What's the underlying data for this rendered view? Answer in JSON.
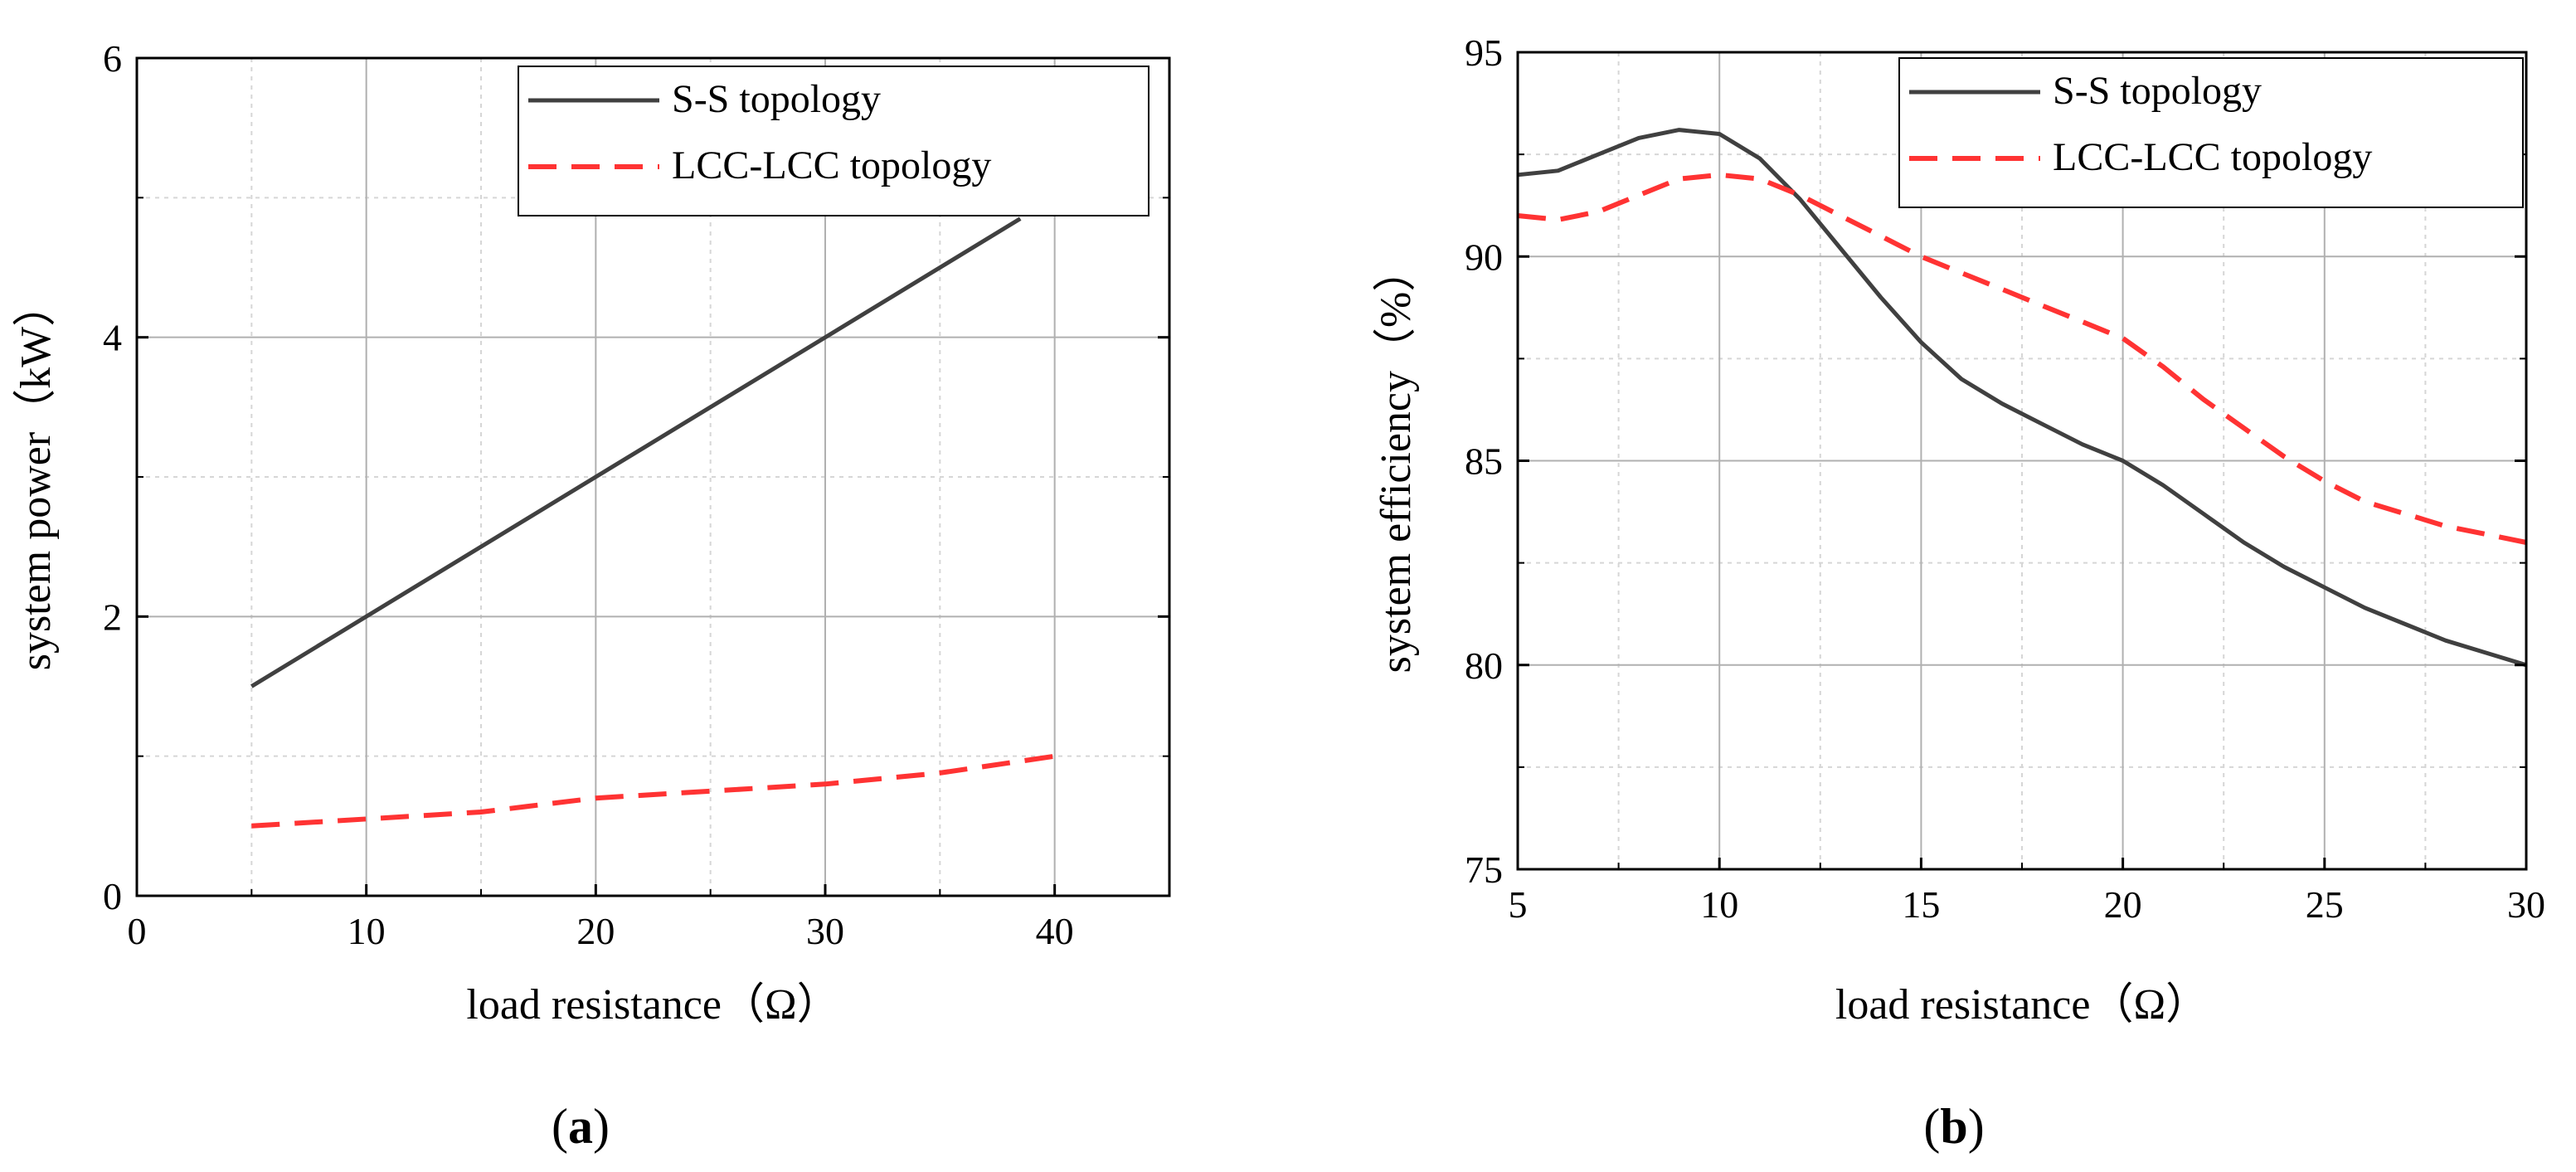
{
  "figure": {
    "panels": [
      {
        "open": "(",
        "letter": "a",
        "close": ")"
      },
      {
        "open": "(",
        "letter": "b",
        "close": ")"
      }
    ]
  },
  "colors": {
    "ss": "#404040",
    "lcc": "#ff3333",
    "grid_major": "#b0b0b0",
    "grid_minor": "#d6d6d6",
    "axis": "#000000"
  },
  "chart_data": [
    {
      "type": "line",
      "panel": "a",
      "xlabel": "load resistance（Ω）",
      "ylabel": "system power（kW）",
      "xlim": [
        0,
        45
      ],
      "ylim": [
        0,
        6
      ],
      "xticks": [
        0,
        10,
        20,
        30,
        40
      ],
      "yticks": [
        0,
        2,
        4,
        6
      ],
      "legend_position": "top-right",
      "series": [
        {
          "name": "S-S topology",
          "style": "solid",
          "x": [
            5,
            10,
            20,
            30,
            38.5
          ],
          "y": [
            1.5,
            2.0,
            3.0,
            4.0,
            4.85
          ]
        },
        {
          "name": "LCC-LCC topology",
          "style": "dashed",
          "x": [
            5,
            10,
            15,
            20,
            25,
            30,
            35,
            40
          ],
          "y": [
            0.5,
            0.55,
            0.6,
            0.7,
            0.75,
            0.8,
            0.88,
            1.0
          ]
        }
      ]
    },
    {
      "type": "line",
      "panel": "b",
      "xlabel": "load resistance（Ω）",
      "ylabel": "system efficiency（%）",
      "xlim": [
        5,
        30
      ],
      "ylim": [
        75,
        95
      ],
      "xticks": [
        5,
        10,
        15,
        20,
        25,
        30
      ],
      "yticks": [
        75,
        80,
        85,
        90,
        95
      ],
      "legend_position": "top-right",
      "series": [
        {
          "name": "S-S topology",
          "style": "solid",
          "x": [
            5,
            6,
            7,
            8,
            9,
            10,
            11,
            12,
            13,
            14,
            15,
            16,
            17,
            18,
            19,
            20,
            21,
            22,
            23,
            24,
            25,
            26,
            27,
            28,
            29,
            30
          ],
          "y": [
            92.0,
            92.1,
            92.5,
            92.9,
            93.1,
            93.0,
            92.4,
            91.4,
            90.2,
            89.0,
            87.9,
            87.0,
            86.4,
            85.9,
            85.4,
            85.0,
            84.4,
            83.7,
            83.0,
            82.4,
            81.9,
            81.4,
            81.0,
            80.6,
            80.3,
            80.0
          ]
        },
        {
          "name": "LCC-LCC topology",
          "style": "dashed",
          "x": [
            5,
            6,
            7,
            8,
            9,
            10,
            11,
            12,
            13,
            14,
            15,
            16,
            17,
            18,
            19,
            20,
            21,
            22,
            23,
            24,
            25,
            26,
            27,
            28,
            29,
            30
          ],
          "y": [
            91.0,
            90.9,
            91.1,
            91.5,
            91.9,
            92.0,
            91.9,
            91.5,
            91.0,
            90.5,
            90.0,
            89.6,
            89.2,
            88.8,
            88.4,
            88.0,
            87.3,
            86.5,
            85.8,
            85.1,
            84.5,
            84.0,
            83.7,
            83.4,
            83.2,
            83.0
          ]
        }
      ]
    }
  ]
}
